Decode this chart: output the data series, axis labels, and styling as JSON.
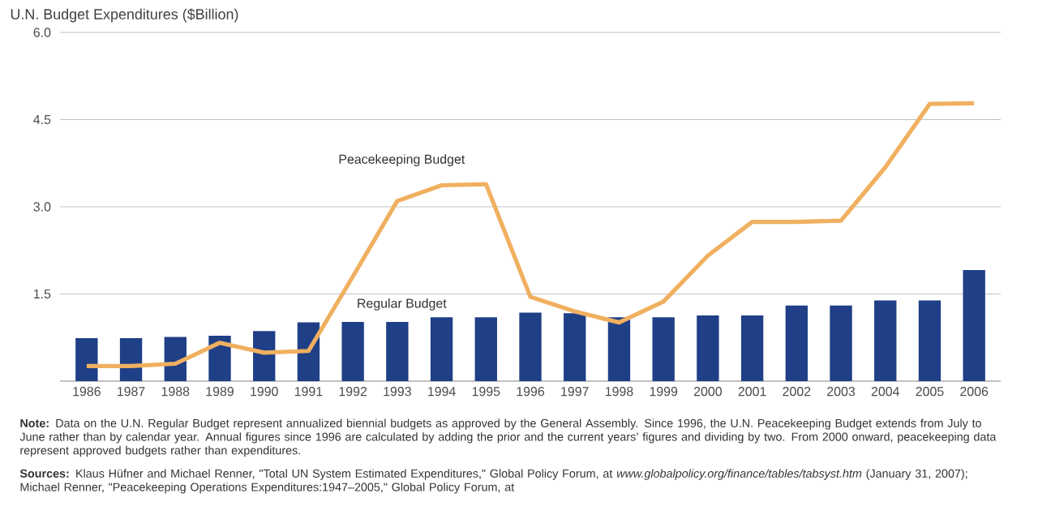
{
  "chart_data": {
    "type": "bar",
    "title": "U.N. Budget Expenditures ($Billion)",
    "categories": [
      "1986",
      "1987",
      "1988",
      "1989",
      "1990",
      "1991",
      "1992",
      "1993",
      "1994",
      "1995",
      "1996",
      "1997",
      "1998",
      "1999",
      "2000",
      "2001",
      "2002",
      "2003",
      "2004",
      "2005",
      "2006"
    ],
    "series": [
      {
        "name": "Regular Budget",
        "color": "#1f3f86",
        "values": [
          0.74,
          0.74,
          0.76,
          0.78,
          0.86,
          1.01,
          1.02,
          1.02,
          1.1,
          1.1,
          1.18,
          1.17,
          1.1,
          1.1,
          1.13,
          1.13,
          1.3,
          1.3,
          1.39,
          1.39,
          1.91
        ]
      },
      {
        "name": "Peacekeeping Budget",
        "type": "line",
        "color": "#f0b060",
        "values": [
          0.26,
          0.26,
          0.3,
          0.66,
          0.49,
          0.52,
          1.8,
          3.1,
          3.37,
          3.39,
          1.45,
          1.2,
          1.01,
          1.37,
          2.16,
          2.74,
          2.74,
          2.76,
          3.68,
          4.77,
          4.78
        ]
      }
    ],
    "ylim": [
      0,
      6
    ],
    "yticks": [
      1.5,
      {
        "value": 3,
        "label": "3.0"
      },
      4.5,
      {
        "value": 6,
        "label": "6.0"
      }
    ],
    "grid": "y",
    "annotations": [
      "**Note:** Data on the U.N. Regular Budget represent annualized biennial budgets as approved by the General Assembly. Since 1996, the U.N. Peacekeeping Budget extends from July to June rather than by calendar year. Annual figures since 1996 are calculated by adding the prior and the current years’ figures and dividing by two. From 2000 onward, peacekeeping data represent approved budgets rather than expenditures.",
      "**Sources:** Klaus Hüfner and Michael Renner, \"Total UN System Estimated Expenditures,\" Global Policy Forum, at *www.globalpolicy.org/finance/tables/tabsyst.htm* (January 31, 2007); Michael Renner, \"Peacekeeping Operations Expenditures:1947–2005,\" Global Policy Forum, at"
    ]
  }
}
